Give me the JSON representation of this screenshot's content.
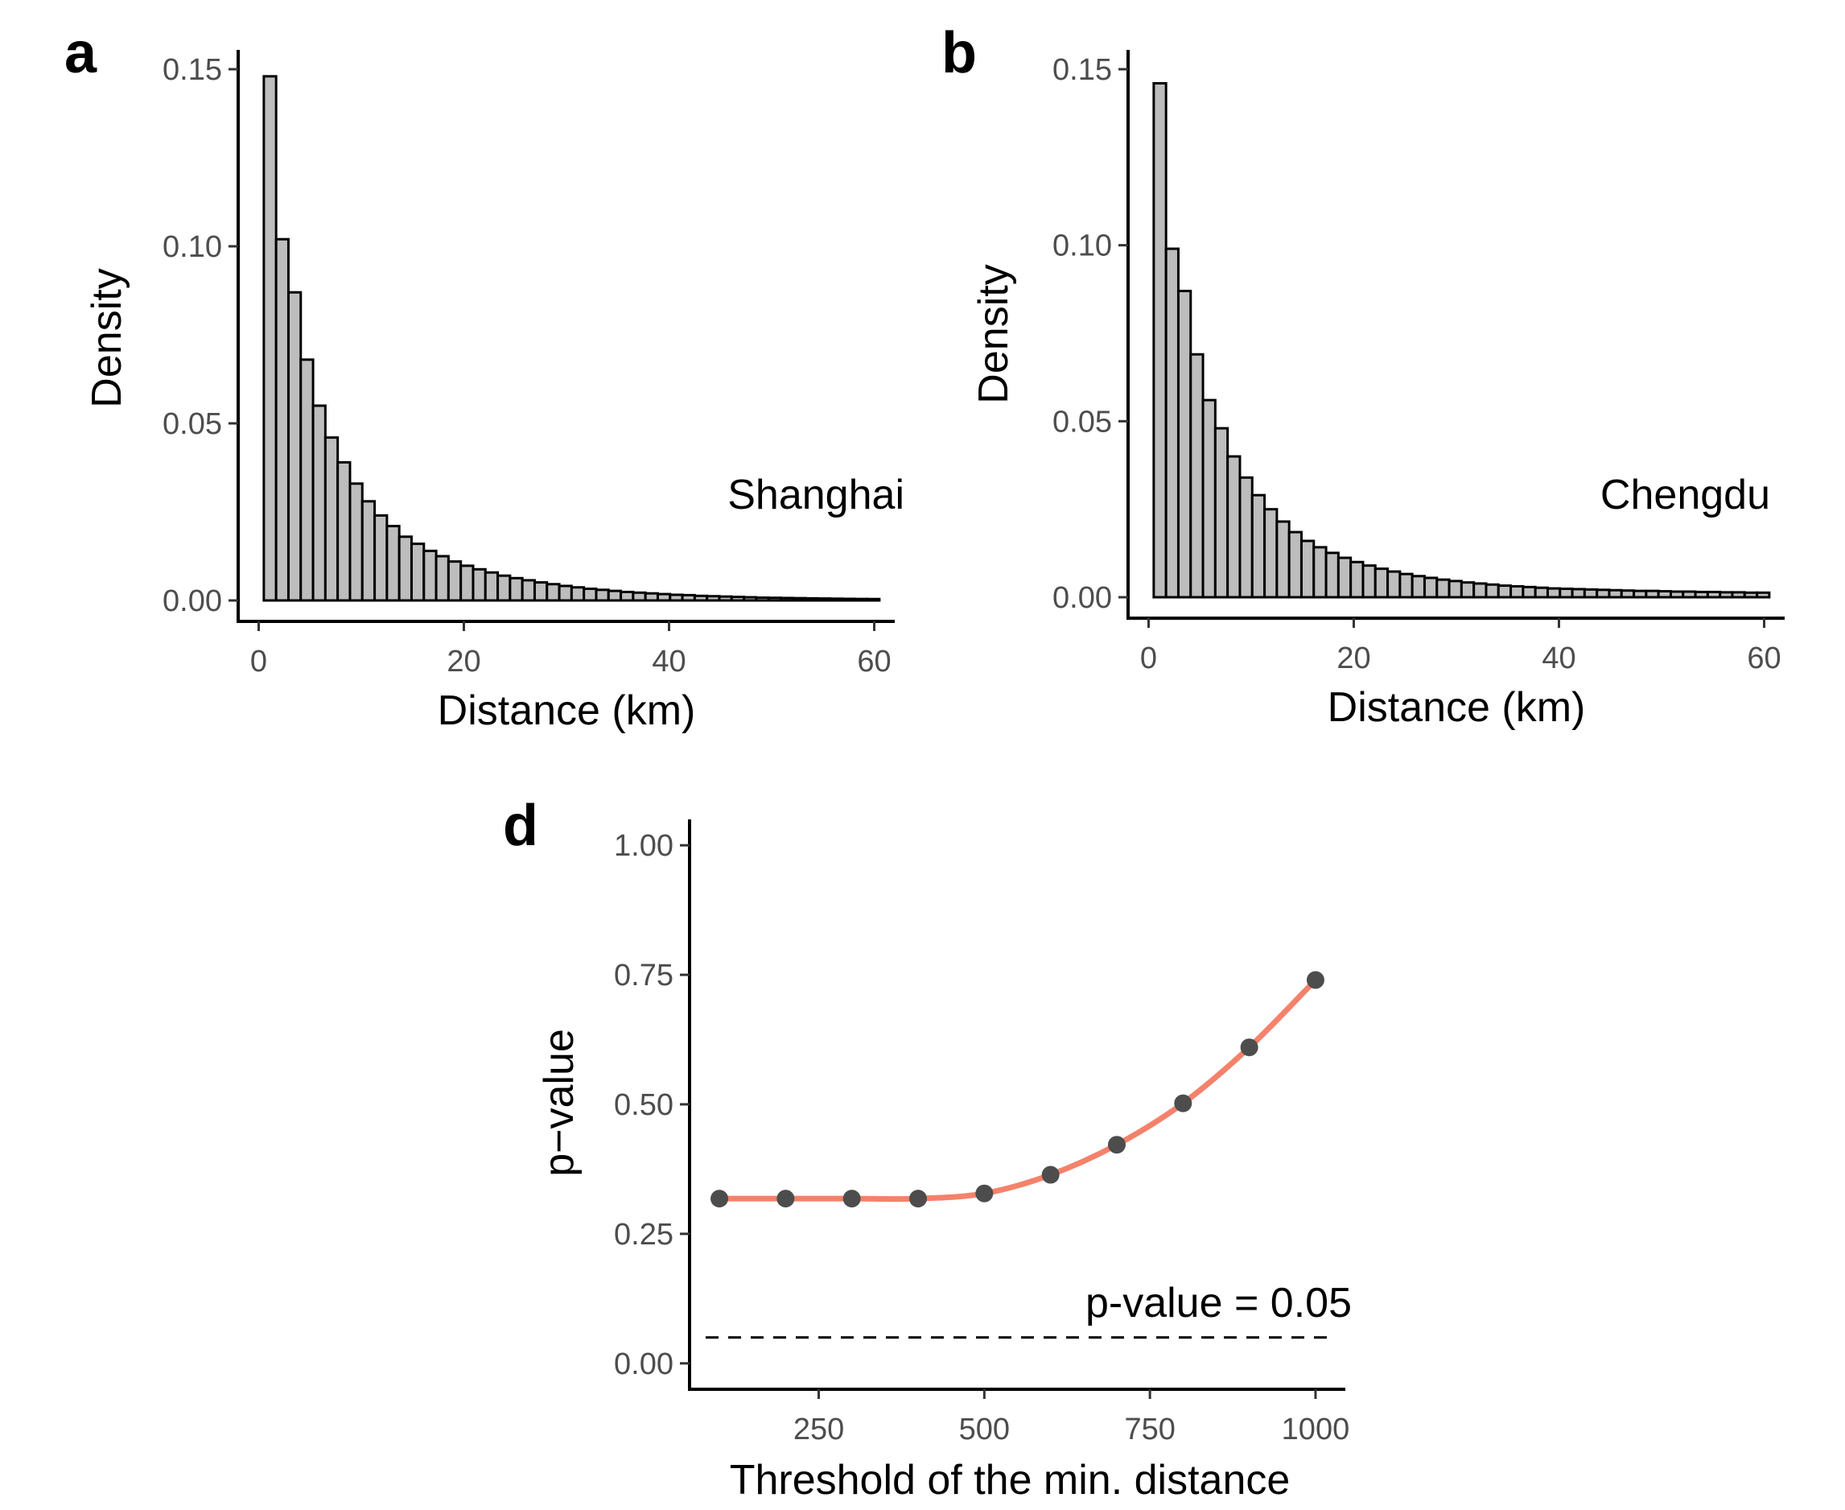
{
  "chart_data": [
    {
      "panel": "a",
      "type": "bar",
      "title": "",
      "annotation": "Shanghai",
      "xlabel": "Distance (km)",
      "ylabel": "Density",
      "xlim": [
        -2,
        62
      ],
      "ylim": [
        0,
        0.15
      ],
      "xticks": [
        0,
        20,
        40,
        60
      ],
      "xtick_labels": [
        "0",
        "20",
        "40",
        "60"
      ],
      "yticks": [
        0,
        0.05,
        0.1,
        0.15
      ],
      "ytick_labels": [
        "0.00",
        "0.05",
        "0.10",
        "0.15"
      ],
      "bin_start": 0.5,
      "bin_width": 1.2,
      "values": [
        0.148,
        0.102,
        0.087,
        0.068,
        0.055,
        0.046,
        0.039,
        0.033,
        0.028,
        0.024,
        0.021,
        0.018,
        0.016,
        0.014,
        0.0125,
        0.011,
        0.0098,
        0.0088,
        0.0079,
        0.007,
        0.0063,
        0.0057,
        0.0051,
        0.0046,
        0.0041,
        0.0037,
        0.0033,
        0.003,
        0.0027,
        0.0024,
        0.0022,
        0.002,
        0.0018,
        0.0016,
        0.0015,
        0.0013,
        0.0012,
        0.0011,
        0.001,
        0.0009,
        0.0008,
        0.00075,
        0.0007,
        0.00065,
        0.0006,
        0.00055,
        0.0005,
        0.00046,
        0.00042,
        0.0004
      ]
    },
    {
      "panel": "b",
      "type": "bar",
      "title": "",
      "annotation": "Chengdu",
      "xlabel": "Distance (km)",
      "ylabel": "Density",
      "xlim": [
        -2,
        62
      ],
      "ylim": [
        0,
        0.15
      ],
      "xticks": [
        0,
        20,
        40,
        60
      ],
      "xtick_labels": [
        "0",
        "20",
        "40",
        "60"
      ],
      "yticks": [
        0,
        0.05,
        0.1,
        0.15
      ],
      "ytick_labels": [
        "0.00",
        "0.05",
        "0.10",
        "0.15"
      ],
      "bin_start": 0.5,
      "bin_width": 1.2,
      "values": [
        0.146,
        0.099,
        0.087,
        0.069,
        0.056,
        0.048,
        0.04,
        0.034,
        0.029,
        0.025,
        0.0215,
        0.0185,
        0.016,
        0.0142,
        0.0126,
        0.0112,
        0.01,
        0.009,
        0.0081,
        0.0073,
        0.0066,
        0.006,
        0.0055,
        0.005,
        0.0046,
        0.0042,
        0.0039,
        0.0036,
        0.0033,
        0.0031,
        0.0029,
        0.0027,
        0.0025,
        0.0024,
        0.0023,
        0.0022,
        0.0021,
        0.002,
        0.0019,
        0.0018,
        0.0018,
        0.0017,
        0.0016,
        0.0016,
        0.0015,
        0.0015,
        0.0014,
        0.0014,
        0.0013,
        0.0013
      ]
    },
    {
      "panel": "d",
      "type": "line",
      "title": "",
      "xlabel": "Threshold of the min. distance",
      "ylabel": "p−value",
      "xlim": [
        55,
        1045
      ],
      "ylim": [
        -0.05,
        1.05
      ],
      "xticks": [
        250,
        500,
        750,
        1000
      ],
      "xtick_labels": [
        "250",
        "500",
        "750",
        "1000"
      ],
      "yticks": [
        0,
        0.25,
        0.5,
        0.75,
        1
      ],
      "ytick_labels": [
        "0.00",
        "0.25",
        "0.50",
        "0.75",
        "1.00"
      ],
      "x": [
        100,
        200,
        300,
        400,
        500,
        600,
        700,
        800,
        900,
        1000
      ],
      "y": [
        0.318,
        0.318,
        0.318,
        0.318,
        0.328,
        0.364,
        0.422,
        0.502,
        0.61,
        0.74
      ],
      "line_color": "#f4826b",
      "point_color": "#4d4d4d",
      "reference_line": {
        "y": 0.05,
        "label": "p-value = 0.05"
      }
    }
  ]
}
